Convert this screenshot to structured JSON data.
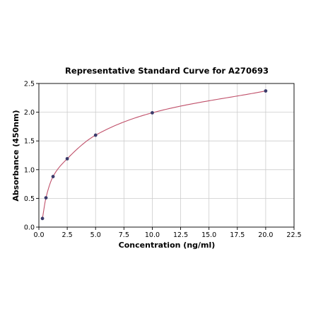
{
  "chart_data": {
    "type": "scatter",
    "title": "Representative Standard Curve for A270693",
    "xlabel": "Concentration (ng/ml)",
    "ylabel": "Absorbance (450nm)",
    "xlim": [
      0,
      22.5
    ],
    "ylim": [
      0,
      2.5
    ],
    "x_ticks": [
      "0.0",
      "2.5",
      "5.0",
      "7.5",
      "10.0",
      "12.5",
      "15.0",
      "17.5",
      "20.0",
      "22.5"
    ],
    "y_ticks": [
      "0.0",
      "0.5",
      "1.0",
      "1.5",
      "2.0",
      "2.5"
    ],
    "grid": true,
    "fit_curve": true,
    "series": [
      {
        "x": [
          0.313,
          0.625,
          1.25,
          2.5,
          5.0,
          10.0,
          20.0
        ],
        "y": [
          0.15,
          0.51,
          0.88,
          1.19,
          1.6,
          1.99,
          2.37
        ]
      }
    ],
    "colors": {
      "points": "#3b3b6b",
      "curve": "#c0506a",
      "grid": "#cccccc"
    }
  }
}
